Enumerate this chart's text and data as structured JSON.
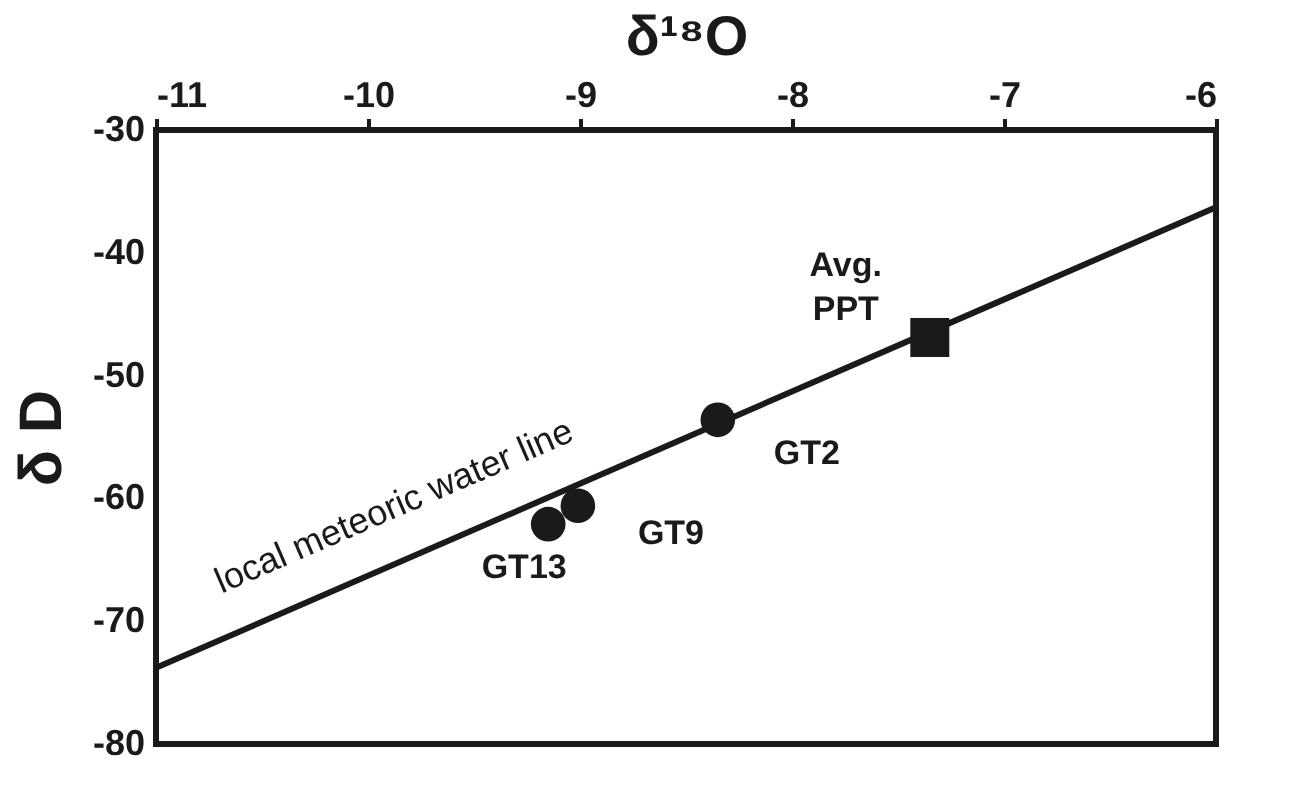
{
  "chart_data": {
    "type": "scatter",
    "xlabel": "δ¹⁸O",
    "ylabel": "δ D",
    "xlim": [
      -11,
      -6
    ],
    "xticks": [
      -11,
      -10,
      -9,
      -8,
      -7,
      -6
    ],
    "ylim": [
      -80,
      -30
    ],
    "yticks": [
      -80,
      -70,
      -60,
      -50,
      -40,
      -30
    ],
    "grid": false,
    "series": [
      {
        "type": "line",
        "color": "#1a1a1a",
        "line_style": "solid",
        "marker": "none",
        "x": [
          -11,
          -6
        ],
        "values": [
          -73.8,
          -36.3
        ]
      },
      {
        "type": "scatter",
        "color": "#1a1a1a",
        "marker": "circle",
        "x": [
          -8.35,
          -9.01,
          -9.15
        ],
        "values": [
          -53.6,
          -60.6,
          -62.1
        ]
      },
      {
        "type": "scatter",
        "color": "#1a1a1a",
        "marker": "square",
        "x": [
          -7.35
        ],
        "values": [
          -46.9
        ]
      }
    ],
    "annotations": [
      {
        "text": "GT2",
        "x": -8.35,
        "y": -53.6
      },
      {
        "text": "GT9",
        "x": -9.01,
        "y": -60.6
      },
      {
        "text": "GT13",
        "x": -9.15,
        "y": -62.1
      },
      {
        "text": "Avg.\nPPT",
        "x": -7.35,
        "y": -46.9
      },
      "local meteoric water line"
    ]
  }
}
